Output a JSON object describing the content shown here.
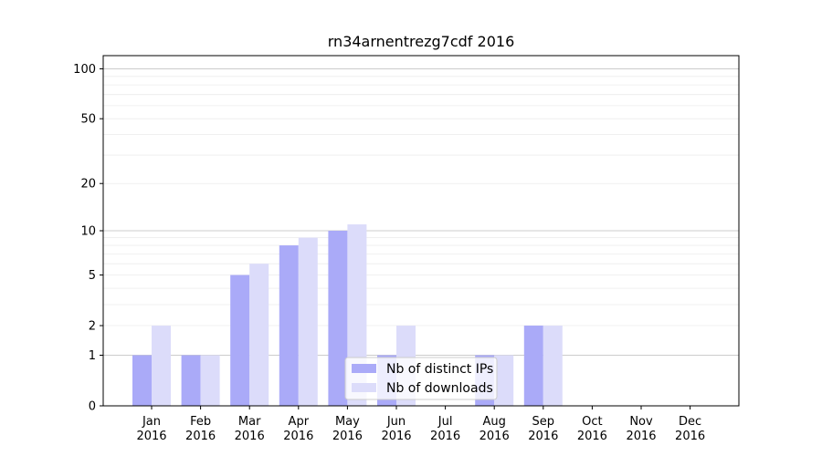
{
  "chart_data": {
    "type": "bar",
    "title": "rn34arnentrezg7cdf 2016",
    "categories": [
      [
        "Jan",
        "2016"
      ],
      [
        "Feb",
        "2016"
      ],
      [
        "Mar",
        "2016"
      ],
      [
        "Apr",
        "2016"
      ],
      [
        "May",
        "2016"
      ],
      [
        "Jun",
        "2016"
      ],
      [
        "Jul",
        "2016"
      ],
      [
        "Aug",
        "2016"
      ],
      [
        "Sep",
        "2016"
      ],
      [
        "Oct",
        "2016"
      ],
      [
        "Nov",
        "2016"
      ],
      [
        "Dec",
        "2016"
      ]
    ],
    "series": [
      {
        "name": "Nb of distinct IPs",
        "color": "#aaaaf8",
        "values": [
          1,
          1,
          5,
          8,
          10,
          1,
          0,
          1,
          2,
          0,
          0,
          0
        ]
      },
      {
        "name": "Nb of downloads",
        "color": "#dcdcfa",
        "values": [
          2,
          1,
          6,
          9,
          11,
          2,
          0,
          1,
          2,
          0,
          0,
          0
        ]
      }
    ],
    "yscale": "log1p",
    "ylim": [
      0,
      120
    ],
    "yticks": [
      {
        "value": 0,
        "label": "0"
      },
      {
        "value": 1,
        "label": "1"
      },
      {
        "value": 2,
        "label": "2"
      },
      {
        "value": 5,
        "label": "5"
      },
      {
        "value": 10,
        "label": "10"
      },
      {
        "value": 20,
        "label": "20"
      },
      {
        "value": 50,
        "label": "50"
      },
      {
        "value": 100,
        "label": "100"
      }
    ],
    "major_gridlines": [
      1,
      10,
      100
    ],
    "minor_gridlines": [
      2,
      3,
      4,
      5,
      6,
      7,
      8,
      9,
      20,
      30,
      40,
      50,
      60,
      70,
      80,
      90
    ],
    "legend_position": "lower-center",
    "grid": true
  }
}
